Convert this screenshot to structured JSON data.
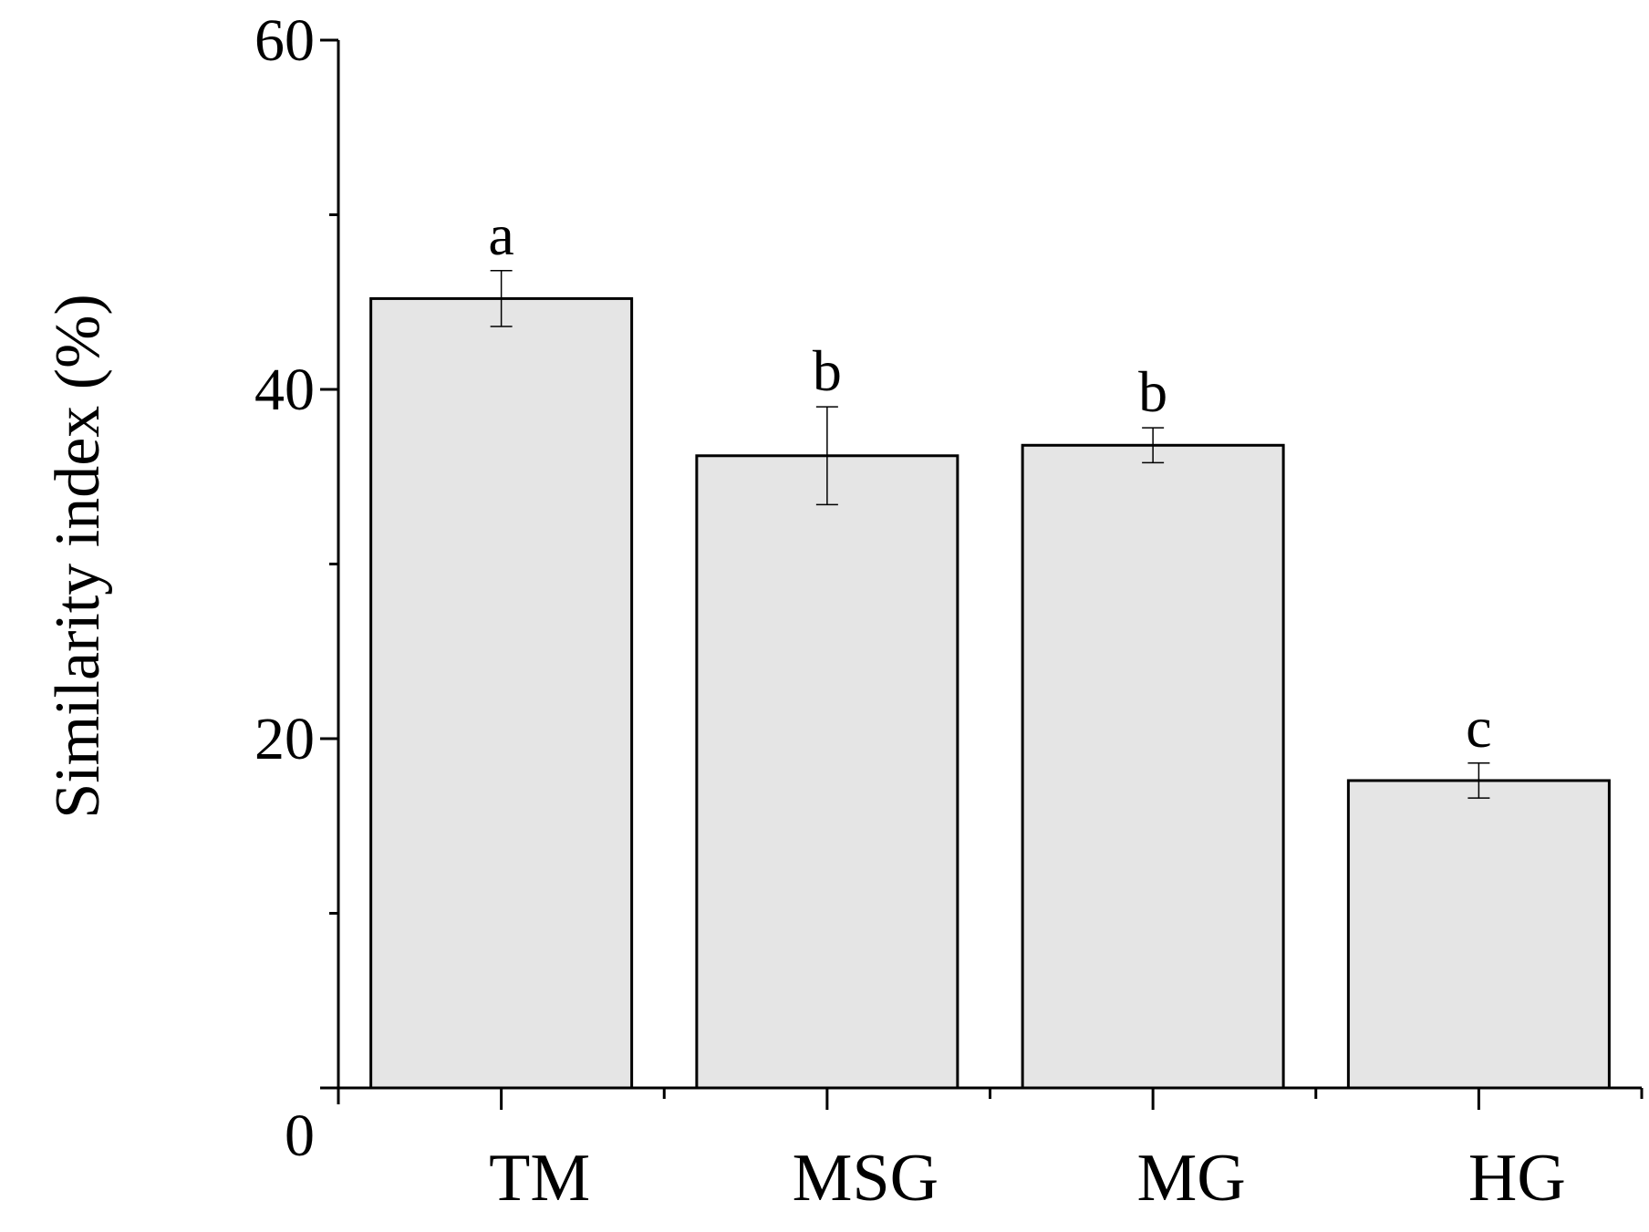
{
  "chart_data": {
    "type": "bar",
    "categories": [
      "TM",
      "MSG",
      "MG",
      "HG"
    ],
    "values": [
      45.2,
      36.2,
      36.8,
      17.6
    ],
    "errors": [
      1.6,
      2.8,
      1.0,
      1.0
    ],
    "significance_labels": [
      "a",
      "b",
      "b",
      "c"
    ],
    "title": "",
    "xlabel": "",
    "ylabel": "Similarity index (%)",
    "ylim": [
      0,
      60
    ],
    "y_ticks": [
      0,
      20,
      40,
      60
    ],
    "y_tick_labels": [
      "0",
      "20",
      "40",
      "60"
    ],
    "grid": false,
    "legend": "none",
    "bar_color": "#e5e5e5",
    "bar_edge_color": "#000000"
  }
}
